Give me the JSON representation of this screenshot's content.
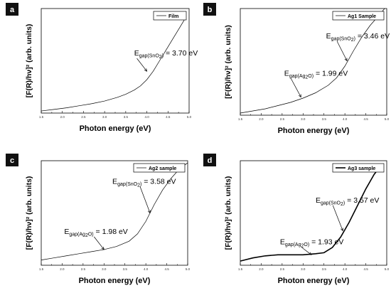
{
  "chart_data": [
    {
      "panel": "a",
      "type": "line",
      "xlabel": "Photon energy (eV)",
      "ylabel": "[F(R)/hν]² (arb. units)",
      "xlim": [
        1.5,
        5.0
      ],
      "xticks": [
        "1.5",
        "2.0",
        "2.5",
        "3.0",
        "3.5",
        "4.0",
        "4.5",
        "5.0"
      ],
      "legend": "Film",
      "line_width": 0.7,
      "series": [
        {
          "x": [
            1.5,
            1.8,
            2.1,
            2.4,
            2.7,
            3.0,
            3.3,
            3.5,
            3.7,
            3.85,
            4.0,
            4.15,
            4.3,
            4.45,
            4.6,
            4.75,
            4.9
          ],
          "y": [
            0.02,
            0.035,
            0.05,
            0.07,
            0.09,
            0.115,
            0.15,
            0.18,
            0.22,
            0.26,
            0.32,
            0.4,
            0.5,
            0.6,
            0.7,
            0.8,
            0.9
          ]
        }
      ],
      "annotations": [
        {
          "main": "E",
          "sub": "gap(SnO",
          "sub2": "2",
          "tail": ")",
          "value": " = 3.70 eV",
          "x": 3.7,
          "y": 0.55,
          "target_x": 4.0,
          "target_y": 0.4
        }
      ]
    },
    {
      "panel": "b",
      "type": "line",
      "xlabel": "Photon energy (eV)",
      "ylabel": "[F(R)/hν]² (arb. units)",
      "xlim": [
        1.5,
        5.0
      ],
      "xticks": [
        "1.5",
        "2.0",
        "2.5",
        "3.0",
        "3.5",
        "4.0",
        "4.5",
        "5.0"
      ],
      "legend": "Ag1 Sample",
      "line_width": 0.7,
      "series": [
        {
          "x": [
            1.5,
            1.8,
            2.1,
            2.4,
            2.7,
            3.0,
            3.3,
            3.6,
            3.8,
            4.0,
            4.2,
            4.4,
            4.6,
            4.8,
            4.95
          ],
          "y": [
            0.02,
            0.04,
            0.06,
            0.09,
            0.12,
            0.16,
            0.21,
            0.28,
            0.35,
            0.46,
            0.6,
            0.73,
            0.84,
            0.93,
            1.0
          ]
        }
      ],
      "annotations": [
        {
          "main": "E",
          "sub": "gap(SnO",
          "sub2": "2",
          "tail": ")",
          "value": " = 3.46 eV",
          "x": 3.55,
          "y": 0.72,
          "target_x": 4.05,
          "target_y": 0.51
        },
        {
          "main": "E",
          "sub": "gap(Ag",
          "sub2": "2",
          "tail": "O)",
          "value": " = 1.99 eV",
          "x": 2.55,
          "y": 0.37,
          "target_x": 2.95,
          "target_y": 0.17
        }
      ]
    },
    {
      "panel": "c",
      "type": "line",
      "xlabel": "Photon energy (eV)",
      "ylabel": "[F(R)/hν]² (arb. units)",
      "xlim": [
        1.5,
        5.0
      ],
      "xticks": [
        "1.5",
        "2.0",
        "2.5",
        "3.0",
        "3.5",
        "4.0",
        "4.5",
        "5.0"
      ],
      "legend": "Ag2 sample",
      "line_width": 0.7,
      "series": [
        {
          "x": [
            1.5,
            1.8,
            2.1,
            2.4,
            2.7,
            3.0,
            3.3,
            3.6,
            3.8,
            4.0,
            4.2,
            4.4,
            4.6,
            4.8,
            5.0
          ],
          "y": [
            0.05,
            0.07,
            0.09,
            0.11,
            0.13,
            0.15,
            0.18,
            0.23,
            0.3,
            0.42,
            0.58,
            0.72,
            0.83,
            0.92,
            0.98
          ]
        }
      ],
      "annotations": [
        {
          "main": "E",
          "sub": "gap(SnO",
          "sub2": "2",
          "tail": ")",
          "value": " = 3.58 eV",
          "x": 3.2,
          "y": 0.78,
          "target_x": 4.1,
          "target_y": 0.5
        },
        {
          "main": "E",
          "sub": "gap(Ag",
          "sub2": "2",
          "tail": "O)",
          "value": " = 1.98 eV",
          "x": 2.05,
          "y": 0.3,
          "target_x": 3.0,
          "target_y": 0.15
        }
      ]
    },
    {
      "panel": "d",
      "type": "line",
      "xlabel": "Photon energy (eV)",
      "ylabel": "[F(R)/hν]² (arb. units)",
      "xlim": [
        1.5,
        5.0
      ],
      "xticks": [
        "1.5",
        "2.0",
        "2.5",
        "3.0",
        "3.5",
        "4.0",
        "4.5",
        "5.0"
      ],
      "legend": "Ag3 sample",
      "line_width": 1.6,
      "series": [
        {
          "x": [
            1.5,
            1.8,
            2.1,
            2.4,
            2.7,
            3.0,
            3.3,
            3.5,
            3.7,
            3.9,
            4.1,
            4.3,
            4.5,
            4.7,
            4.9
          ],
          "y": [
            0.04,
            0.07,
            0.09,
            0.1,
            0.1,
            0.1,
            0.11,
            0.12,
            0.17,
            0.27,
            0.41,
            0.57,
            0.73,
            0.87,
            0.97
          ]
        }
      ],
      "annotations": [
        {
          "main": "E",
          "sub": "gap(SnO",
          "sub2": "2",
          "tail": ")",
          "value": " = 3.57 eV",
          "x": 3.3,
          "y": 0.6,
          "target_x": 3.95,
          "target_y": 0.33
        },
        {
          "main": "E",
          "sub": "gap(Ag",
          "sub2": "2",
          "tail": "O)",
          "value": " = 1.93 eV",
          "x": 2.45,
          "y": 0.2,
          "target_x": 3.2,
          "target_y": 0.1
        }
      ]
    }
  ]
}
